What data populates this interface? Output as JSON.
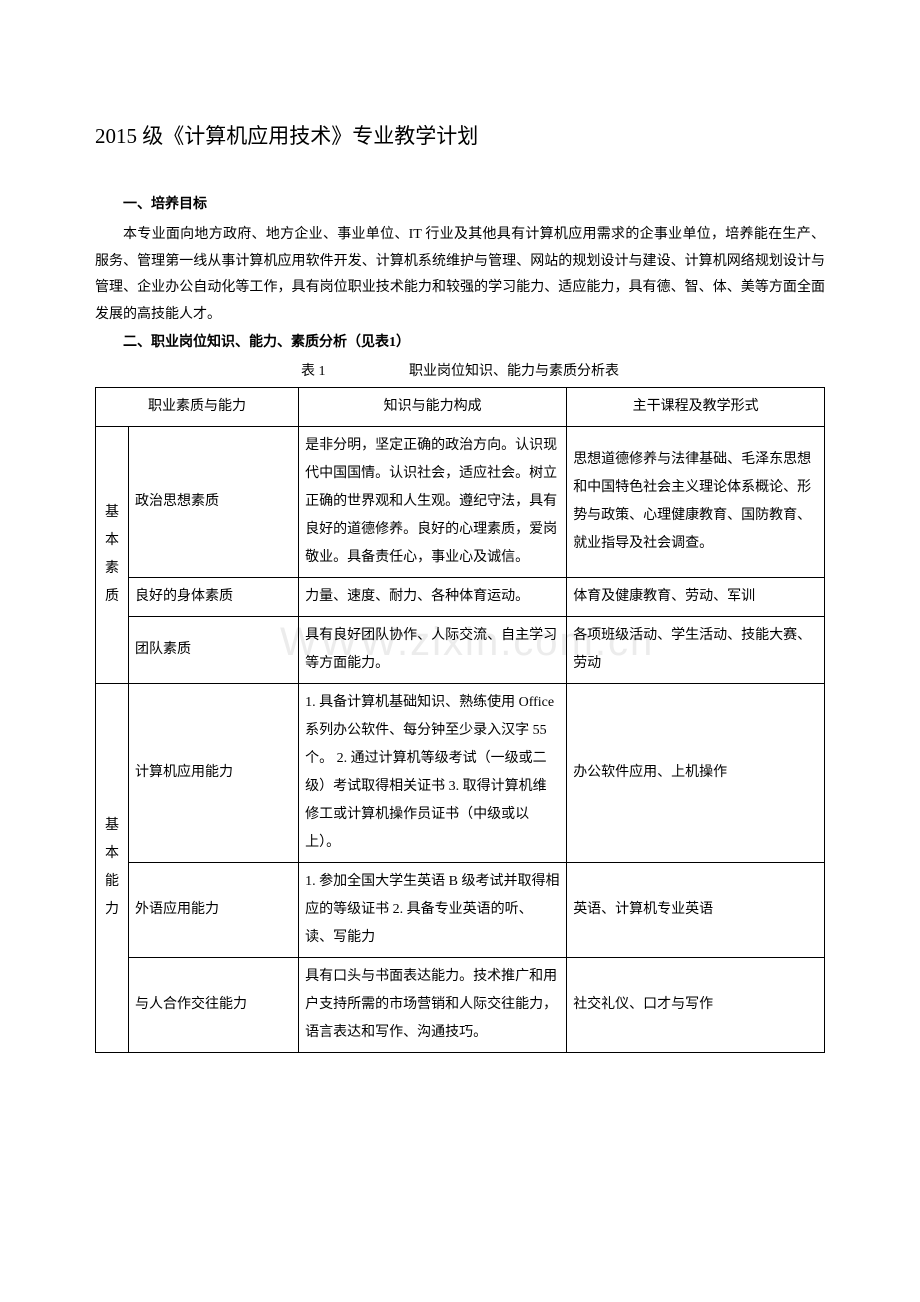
{
  "document": {
    "title": "2015 级《计算机应用技术》专业教学计划",
    "section1_heading": "一、培养目标",
    "section1_body": "本专业面向地方政府、地方企业、事业单位、IT 行业及其他具有计算机应用需求的企事业单位，培养能在生产、服务、管理第一线从事计算机应用软件开发、计算机系统维护与管理、网站的规划设计与建设、计算机网络规划设计与管理、企业办公自动化等工作，具有岗位职业技术能力和较强的学习能力、适应能力，具有德、智、体、美等方面全面发展的高技能人才。",
    "section2_heading": "二、职业岗位知识、能力、素质分析（见表1）",
    "table_caption_num": "表 1",
    "table_caption_title": "职业岗位知识、能力与素质分析表",
    "headers": {
      "h1": "职业素质与能力",
      "h2": "知识与能力构成",
      "h3": "主干课程及教学形式"
    },
    "groups": [
      {
        "category": "基本素质",
        "rows": [
          {
            "sub": "政治思想素质",
            "knowledge": "是非分明，坚定正确的政治方向。认识现代中国国情。认识社会，适应社会。树立正确的世界观和人生观。遵纪守法，具有良好的道德修养。良好的心理素质，爱岗敬业。具备责任心，事业心及诚信。",
            "course": "思想道德修养与法律基础、毛泽东思想和中国特色社会主义理论体系概论、形势与政策、心理健康教育、国防教育、就业指导及社会调查。"
          },
          {
            "sub": "良好的身体素质",
            "knowledge": "力量、速度、耐力、各种体育运动。",
            "course": "体育及健康教育、劳动、军训"
          },
          {
            "sub": "团队素质",
            "knowledge": "具有良好团队协作、人际交流、自主学习等方面能力。",
            "course": "各项班级活动、学生活动、技能大赛、劳动"
          }
        ]
      },
      {
        "category": "基本能力",
        "rows": [
          {
            "sub": "计算机应用能力",
            "knowledge": "1. 具备计算机基础知识、熟练使用 Office 系列办公软件、每分钟至少录入汉字 55 个。\n2. 通过计算机等级考试（一级或二级）考试取得相关证书\n3. 取得计算机维修工或计算机操作员证书（中级或以上）。",
            "course": "办公软件应用、上机操作"
          },
          {
            "sub": "外语应用能力",
            "knowledge": "1. 参加全国大学生英语 B 级考试并取得相应的等级证书\n2. 具备专业英语的听、读、写能力",
            "course": "英语、计算机专业英语"
          },
          {
            "sub": "与人合作交往能力",
            "knowledge": "具有口头与书面表达能力。技术推广和用户支持所需的市场营销和人际交往能力，语言表达和写作、沟通技巧。",
            "course": "社交礼仪、口才与写作"
          }
        ]
      }
    ]
  },
  "watermark": "WWW.zixin.com.cn",
  "style": {
    "page_bg": "#ffffff",
    "text_color": "#000000",
    "border_color": "#000000",
    "title_fontsize": 21,
    "body_fontsize": 14
  }
}
